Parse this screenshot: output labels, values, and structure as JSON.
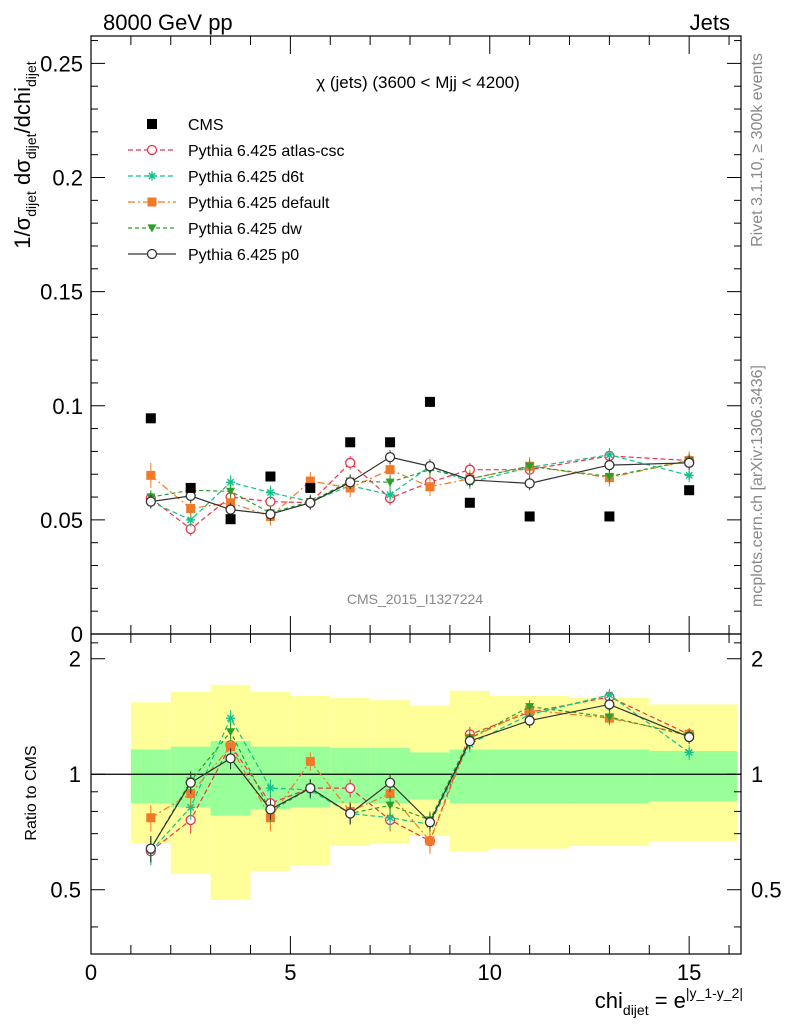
{
  "header": {
    "left": "8000 GeV pp",
    "right": "Jets"
  },
  "side_labels": {
    "rivet": "Rivet 3.1.10, ≥ 300k events",
    "mcplots": "mcplots.cern.ch [arXiv:1306.3436]"
  },
  "watermark": "CMS_2015_I1327224",
  "main_plot": {
    "title": "χ (jets) (3600 < Mjj < 4200)",
    "ylabel": "1/σdijet dσdijet/dchidijet",
    "ylabel_parts": {
      "a": "1/σ",
      "a_sub": "dijet",
      "b": " dσ",
      "b_sub": "dijet",
      "c": "/dchi",
      "c_sub": "dijet"
    },
    "ylim": [
      0,
      0.262
    ],
    "yticks": [
      {
        "v": 0,
        "label": "0"
      },
      {
        "v": 0.05,
        "label": "0.05"
      },
      {
        "v": 0.1,
        "label": "0.1"
      },
      {
        "v": 0.15,
        "label": "0.15"
      },
      {
        "v": 0.2,
        "label": "0.2"
      },
      {
        "v": 0.25,
        "label": "0.25"
      }
    ]
  },
  "ratio_plot": {
    "ylabel": "Ratio to CMS",
    "ylim": [
      0.34,
      2.32
    ],
    "yticks_left": [
      {
        "v": 0.5,
        "label": "0.5"
      },
      {
        "v": 1,
        "label": "1"
      },
      {
        "v": 2,
        "label": "2"
      }
    ],
    "yticks_right": [
      {
        "v": 0.5,
        "label": "0.5"
      },
      {
        "v": 1,
        "label": "1"
      },
      {
        "v": 2,
        "label": "2"
      }
    ]
  },
  "xaxis": {
    "label_base": "chi",
    "label_sub": "dijet",
    "label_eq": " = e",
    "label_sup": "|y_1-y_2|",
    "xlim": [
      0,
      16.3
    ],
    "ticks": [
      {
        "v": 0,
        "label": "0"
      },
      {
        "v": 5,
        "label": "5"
      },
      {
        "v": 10,
        "label": "10"
      },
      {
        "v": 15,
        "label": "15"
      }
    ]
  },
  "chart_data": {
    "type": "scatter",
    "grid": false,
    "legend_position": "top-left",
    "bins": [
      {
        "lo": 1,
        "hi": 2,
        "x": 1.5
      },
      {
        "lo": 2,
        "hi": 3,
        "x": 2.5
      },
      {
        "lo": 3,
        "hi": 4,
        "x": 3.5
      },
      {
        "lo": 4,
        "hi": 5,
        "x": 4.5
      },
      {
        "lo": 5,
        "hi": 6,
        "x": 5.5
      },
      {
        "lo": 6,
        "hi": 7,
        "x": 6.5
      },
      {
        "lo": 7,
        "hi": 8,
        "x": 7.5
      },
      {
        "lo": 8,
        "hi": 9,
        "x": 8.5
      },
      {
        "lo": 9,
        "hi": 10,
        "x": 9.5
      },
      {
        "lo": 10,
        "hi": 12,
        "x": 11
      },
      {
        "lo": 12,
        "hi": 14,
        "x": 13
      },
      {
        "lo": 14,
        "hi": 16.2,
        "x": 15
      }
    ],
    "data": {
      "name": "CMS",
      "values": [
        0.0945,
        0.064,
        0.0503,
        0.069,
        0.064,
        0.084,
        0.084,
        0.1017,
        0.0575,
        0.0515,
        0.0515,
        0.063
      ]
    },
    "ratio_bands": {
      "inner_lo": [
        0.84,
        0.82,
        0.78,
        0.81,
        0.82,
        0.84,
        0.84,
        0.86,
        0.84,
        0.84,
        0.84,
        0.85
      ],
      "inner_hi": [
        1.16,
        1.18,
        1.22,
        1.18,
        1.18,
        1.17,
        1.17,
        1.14,
        1.16,
        1.16,
        1.16,
        1.15
      ],
      "outer_lo": [
        0.66,
        0.55,
        0.47,
        0.56,
        0.58,
        0.65,
        0.66,
        0.69,
        0.63,
        0.64,
        0.65,
        0.67
      ],
      "outer_hi": [
        1.54,
        1.64,
        1.71,
        1.64,
        1.6,
        1.58,
        1.56,
        1.51,
        1.65,
        1.6,
        1.58,
        1.52
      ]
    },
    "series": [
      {
        "name": "Pythia 6.425 atlas-csc",
        "color": "#e8354a",
        "dash": "5,3",
        "marker": "open-circle",
        "values": [
          0.0595,
          0.046,
          0.06,
          0.058,
          0.0575,
          0.075,
          0.0595,
          0.0665,
          0.072,
          0.072,
          0.078,
          0.076
        ],
        "errors": [
          0.003,
          0.003,
          0.003,
          0.003,
          0.003,
          0.003,
          0.003,
          0.003,
          0.003,
          0.003,
          0.003,
          0.003
        ],
        "ratio": [
          0.63,
          0.76,
          1.19,
          0.84,
          0.92,
          0.92,
          0.76,
          0.67,
          1.27,
          1.45,
          1.59,
          1.27
        ],
        "ratio_errors": [
          0.05,
          0.06,
          0.07,
          0.05,
          0.05,
          0.05,
          0.05,
          0.04,
          0.06,
          0.06,
          0.06,
          0.05
        ]
      },
      {
        "name": "Pythia 6.425 d6t",
        "color": "#14c08c",
        "dash": "5,3",
        "marker": "star",
        "values": [
          0.058,
          0.05,
          0.0665,
          0.062,
          0.058,
          0.065,
          0.061,
          0.0735,
          0.0665,
          0.073,
          0.0785,
          0.0695
        ],
        "errors": [
          0.003,
          0.003,
          0.003,
          0.003,
          0.003,
          0.003,
          0.003,
          0.003,
          0.003,
          0.003,
          0.003,
          0.003
        ],
        "ratio": [
          0.63,
          0.82,
          1.4,
          0.92,
          0.91,
          0.79,
          0.77,
          0.74,
          1.2,
          1.43,
          1.61,
          1.14
        ],
        "ratio_errors": [
          0.05,
          0.06,
          0.07,
          0.05,
          0.05,
          0.05,
          0.05,
          0.04,
          0.06,
          0.06,
          0.06,
          0.05
        ]
      },
      {
        "name": "Pythia 6.425 default",
        "color": "#f07a28",
        "dash": "7,3,2,3",
        "marker": "filled-square",
        "values": [
          0.0695,
          0.055,
          0.0575,
          0.0515,
          0.067,
          0.064,
          0.072,
          0.0645,
          0.068,
          0.0735,
          0.0685,
          0.076
        ],
        "errors": [
          0.0055,
          0.004,
          0.004,
          0.004,
          0.004,
          0.004,
          0.004,
          0.004,
          0.004,
          0.004,
          0.004,
          0.004
        ],
        "ratio": [
          0.77,
          0.89,
          1.18,
          0.77,
          1.08,
          0.8,
          0.89,
          0.67,
          1.24,
          1.47,
          1.4,
          1.27
        ],
        "ratio_errors": [
          0.06,
          0.07,
          0.08,
          0.06,
          0.06,
          0.05,
          0.05,
          0.05,
          0.06,
          0.06,
          0.06,
          0.05
        ]
      },
      {
        "name": "Pythia 6.425 dw",
        "color": "#2aa02a",
        "dash": "4,3",
        "marker": "filled-triangle-down",
        "values": [
          0.06,
          0.063,
          0.0625,
          0.053,
          0.058,
          0.067,
          0.0665,
          0.072,
          0.068,
          0.0735,
          0.069,
          0.076
        ],
        "errors": [
          0.003,
          0.003,
          0.003,
          0.003,
          0.003,
          0.003,
          0.003,
          0.003,
          0.003,
          0.003,
          0.003,
          0.003
        ],
        "ratio": [
          0.64,
          0.96,
          1.29,
          0.8,
          0.92,
          0.79,
          0.83,
          0.76,
          1.24,
          1.5,
          1.41,
          1.26
        ],
        "ratio_errors": [
          0.05,
          0.06,
          0.07,
          0.05,
          0.05,
          0.05,
          0.05,
          0.04,
          0.06,
          0.06,
          0.06,
          0.05
        ]
      },
      {
        "name": "Pythia 6.425 p0",
        "color": "#333333",
        "dash": "",
        "marker": "open-circle",
        "values": [
          0.058,
          0.0605,
          0.0545,
          0.0525,
          0.0575,
          0.0665,
          0.0775,
          0.0735,
          0.0675,
          0.066,
          0.074,
          0.075
        ],
        "errors": [
          0.003,
          0.003,
          0.003,
          0.003,
          0.003,
          0.003,
          0.003,
          0.003,
          0.003,
          0.003,
          0.003,
          0.003
        ],
        "ratio": [
          0.64,
          0.95,
          1.1,
          0.81,
          0.92,
          0.79,
          0.95,
          0.75,
          1.22,
          1.38,
          1.52,
          1.25
        ],
        "ratio_errors": [
          0.05,
          0.06,
          0.07,
          0.05,
          0.05,
          0.05,
          0.05,
          0.04,
          0.06,
          0.06,
          0.06,
          0.05
        ]
      }
    ]
  }
}
